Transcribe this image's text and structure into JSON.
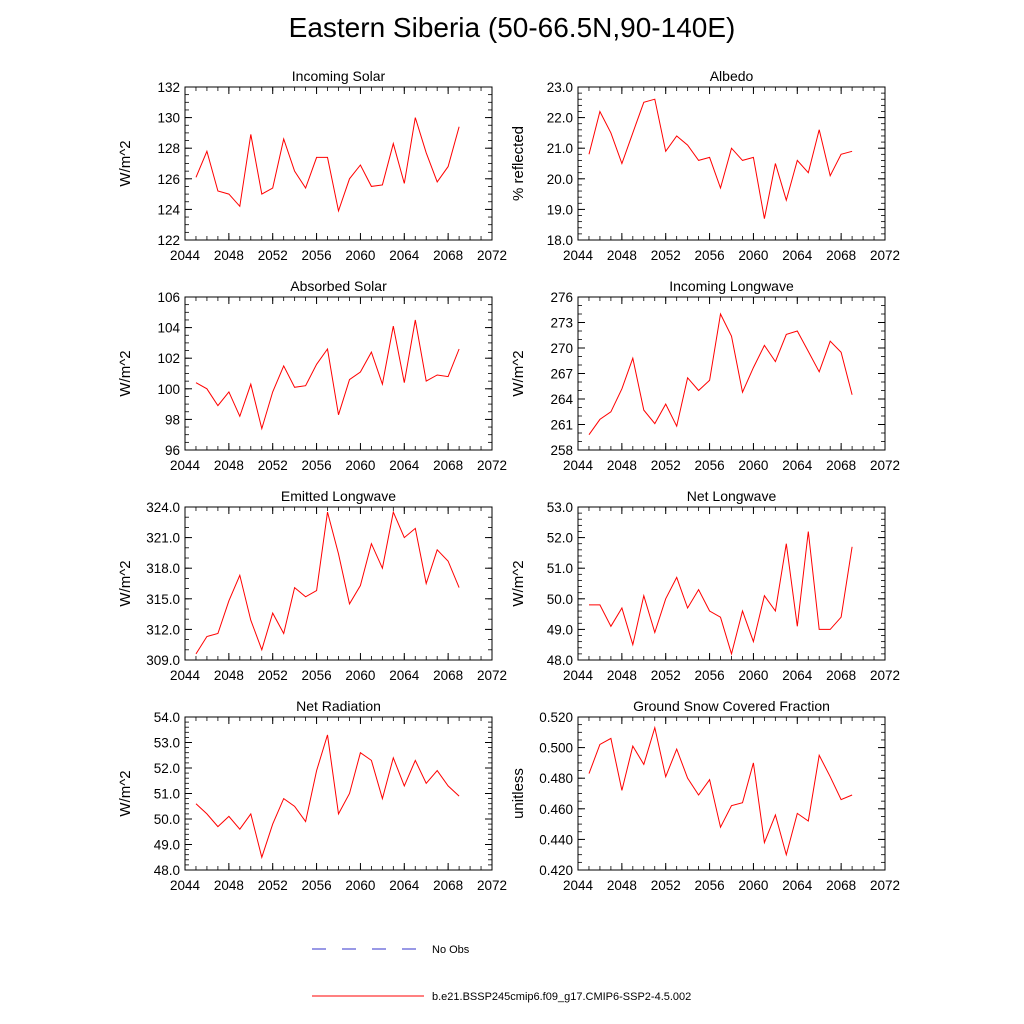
{
  "figure": {
    "title": "Eastern Siberia (50-66.5N,90-140E)",
    "legend": [
      {
        "label": "No Obs",
        "color": "#3333cc",
        "style": "dashed"
      },
      {
        "label": "b.e21.BSSP245cmip6.f09_g17.CMIP6-SSP2-4.5.002",
        "color": "#ff0000",
        "style": "solid"
      }
    ]
  },
  "chart_data": [
    {
      "type": "line",
      "title": "Incoming Solar",
      "xlabel": "",
      "ylabel": "W/m^2",
      "xlim": [
        2044,
        2072
      ],
      "xticks": [
        2044,
        2048,
        2052,
        2056,
        2060,
        2064,
        2068,
        2072
      ],
      "ylim": [
        122,
        132
      ],
      "yticks": [
        "122",
        "124",
        "126",
        "128",
        "130",
        "132"
      ],
      "ytick_values": [
        122,
        124,
        126,
        128,
        130,
        132
      ],
      "yminor": 0.5,
      "x": [
        2045,
        2046,
        2047,
        2048,
        2049,
        2050,
        2051,
        2052,
        2053,
        2054,
        2055,
        2056,
        2057,
        2058,
        2059,
        2060,
        2061,
        2062,
        2063,
        2064,
        2065,
        2066,
        2067,
        2068,
        2069
      ],
      "series": [
        {
          "name": "b.e21.BSSP245cmip6.f09_g17.CMIP6-SSP2-4.5.002",
          "color": "#ff0000",
          "values": [
            126.1,
            127.8,
            125.2,
            125.0,
            124.2,
            128.9,
            125.0,
            125.4,
            128.6,
            126.5,
            125.4,
            127.4,
            127.4,
            123.9,
            126.0,
            126.9,
            125.5,
            125.6,
            128.3,
            125.7,
            130.0,
            127.7,
            125.8,
            126.8,
            129.4
          ]
        }
      ]
    },
    {
      "type": "line",
      "title": "Albedo",
      "xlabel": "",
      "ylabel": "% reflected",
      "xlim": [
        2044,
        2072
      ],
      "xticks": [
        2044,
        2048,
        2052,
        2056,
        2060,
        2064,
        2068,
        2072
      ],
      "ylim": [
        18,
        23
      ],
      "yticks": [
        "18.0",
        "19.0",
        "20.0",
        "21.0",
        "22.0",
        "23.0"
      ],
      "ytick_values": [
        18,
        19,
        20,
        21,
        22,
        23
      ],
      "yminor": 0.2,
      "x": [
        2045,
        2046,
        2047,
        2048,
        2049,
        2050,
        2051,
        2052,
        2053,
        2054,
        2055,
        2056,
        2057,
        2058,
        2059,
        2060,
        2061,
        2062,
        2063,
        2064,
        2065,
        2066,
        2067,
        2068,
        2069
      ],
      "series": [
        {
          "name": "b.e21.BSSP245cmip6.f09_g17.CMIP6-SSP2-4.5.002",
          "color": "#ff0000",
          "values": [
            20.8,
            22.2,
            21.5,
            20.5,
            21.5,
            22.5,
            22.6,
            20.9,
            21.4,
            21.1,
            20.6,
            20.7,
            19.7,
            21.0,
            20.6,
            20.7,
            18.7,
            20.5,
            19.3,
            20.6,
            20.2,
            21.6,
            20.1,
            20.8,
            20.9
          ]
        }
      ]
    },
    {
      "type": "line",
      "title": "Absorbed Solar",
      "xlabel": "",
      "ylabel": "W/m^2",
      "xlim": [
        2044,
        2072
      ],
      "xticks": [
        2044,
        2048,
        2052,
        2056,
        2060,
        2064,
        2068,
        2072
      ],
      "ylim": [
        96,
        106
      ],
      "yticks": [
        "96",
        "98",
        "100",
        "102",
        "104",
        "106"
      ],
      "ytick_values": [
        96,
        98,
        100,
        102,
        104,
        106
      ],
      "yminor": 0.5,
      "x": [
        2045,
        2046,
        2047,
        2048,
        2049,
        2050,
        2051,
        2052,
        2053,
        2054,
        2055,
        2056,
        2057,
        2058,
        2059,
        2060,
        2061,
        2062,
        2063,
        2064,
        2065,
        2066,
        2067,
        2068,
        2069
      ],
      "series": [
        {
          "name": "b.e21.BSSP245cmip6.f09_g17.CMIP6-SSP2-4.5.002",
          "color": "#ff0000",
          "values": [
            100.4,
            100.0,
            98.9,
            99.8,
            98.2,
            100.3,
            97.4,
            99.8,
            101.5,
            100.1,
            100.2,
            101.6,
            102.6,
            98.3,
            100.6,
            101.1,
            102.4,
            100.3,
            104.1,
            100.4,
            104.5,
            100.5,
            100.9,
            100.8,
            102.6
          ]
        }
      ]
    },
    {
      "type": "line",
      "title": "Incoming Longwave",
      "xlabel": "",
      "ylabel": "W/m^2",
      "xlim": [
        2044,
        2072
      ],
      "xticks": [
        2044,
        2048,
        2052,
        2056,
        2060,
        2064,
        2068,
        2072
      ],
      "ylim": [
        258,
        276
      ],
      "yticks": [
        "258",
        "261",
        "264",
        "267",
        "270",
        "273",
        "276"
      ],
      "ytick_values": [
        258,
        261,
        264,
        267,
        270,
        273,
        276
      ],
      "yminor": 1,
      "x": [
        2045,
        2046,
        2047,
        2048,
        2049,
        2050,
        2051,
        2052,
        2053,
        2054,
        2055,
        2056,
        2057,
        2058,
        2059,
        2060,
        2061,
        2062,
        2063,
        2064,
        2065,
        2066,
        2067,
        2068,
        2069
      ],
      "series": [
        {
          "name": "b.e21.BSSP245cmip6.f09_g17.CMIP6-SSP2-4.5.002",
          "color": "#ff0000",
          "values": [
            259.8,
            261.6,
            262.5,
            265.2,
            268.8,
            262.7,
            261.1,
            263.4,
            260.8,
            266.5,
            265.0,
            266.2,
            274.0,
            271.4,
            264.8,
            267.7,
            270.3,
            268.4,
            271.6,
            272.0,
            269.6,
            267.2,
            270.8,
            269.5,
            264.5
          ]
        }
      ]
    },
    {
      "type": "line",
      "title": "Emitted Longwave",
      "xlabel": "",
      "ylabel": "W/m^2",
      "xlim": [
        2044,
        2072
      ],
      "xticks": [
        2044,
        2048,
        2052,
        2056,
        2060,
        2064,
        2068,
        2072
      ],
      "ylim": [
        309,
        324
      ],
      "yticks": [
        "309.0",
        "312.0",
        "315.0",
        "318.0",
        "321.0",
        "324.0"
      ],
      "ytick_values": [
        309,
        312,
        315,
        318,
        321,
        324
      ],
      "yminor": 1,
      "x": [
        2045,
        2046,
        2047,
        2048,
        2049,
        2050,
        2051,
        2052,
        2053,
        2054,
        2055,
        2056,
        2057,
        2058,
        2059,
        2060,
        2061,
        2062,
        2063,
        2064,
        2065,
        2066,
        2067,
        2068,
        2069
      ],
      "series": [
        {
          "name": "b.e21.BSSP245cmip6.f09_g17.CMIP6-SSP2-4.5.002",
          "color": "#ff0000",
          "values": [
            309.6,
            311.3,
            311.6,
            314.8,
            317.3,
            312.9,
            310.0,
            313.6,
            311.6,
            316.1,
            315.2,
            315.8,
            323.5,
            319.4,
            314.5,
            316.3,
            320.4,
            318.0,
            323.5,
            321.0,
            321.9,
            316.5,
            319.8,
            318.7,
            316.1
          ]
        }
      ]
    },
    {
      "type": "line",
      "title": "Net Longwave",
      "xlabel": "",
      "ylabel": "W/m^2",
      "xlim": [
        2044,
        2072
      ],
      "xticks": [
        2044,
        2048,
        2052,
        2056,
        2060,
        2064,
        2068,
        2072
      ],
      "ylim": [
        48,
        53
      ],
      "yticks": [
        "48.0",
        "49.0",
        "50.0",
        "51.0",
        "52.0",
        "53.0"
      ],
      "ytick_values": [
        48,
        49,
        50,
        51,
        52,
        53
      ],
      "yminor": 0.2,
      "x": [
        2045,
        2046,
        2047,
        2048,
        2049,
        2050,
        2051,
        2052,
        2053,
        2054,
        2055,
        2056,
        2057,
        2058,
        2059,
        2060,
        2061,
        2062,
        2063,
        2064,
        2065,
        2066,
        2067,
        2068,
        2069
      ],
      "series": [
        {
          "name": "b.e21.BSSP245cmip6.f09_g17.CMIP6-SSP2-4.5.002",
          "color": "#ff0000",
          "values": [
            49.8,
            49.8,
            49.1,
            49.7,
            48.5,
            50.1,
            48.9,
            50.0,
            50.7,
            49.7,
            50.3,
            49.6,
            49.4,
            48.2,
            49.6,
            48.6,
            50.1,
            49.6,
            51.8,
            49.1,
            52.2,
            49.0,
            49.0,
            49.4,
            51.7
          ]
        }
      ]
    },
    {
      "type": "line",
      "title": "Net Radiation",
      "xlabel": "",
      "ylabel": "W/m^2",
      "xlim": [
        2044,
        2072
      ],
      "xticks": [
        2044,
        2048,
        2052,
        2056,
        2060,
        2064,
        2068,
        2072
      ],
      "ylim": [
        48,
        54
      ],
      "yticks": [
        "48.0",
        "49.0",
        "50.0",
        "51.0",
        "52.0",
        "53.0",
        "54.0"
      ],
      "ytick_values": [
        48,
        49,
        50,
        51,
        52,
        53,
        54
      ],
      "yminor": 0.2,
      "x": [
        2045,
        2046,
        2047,
        2048,
        2049,
        2050,
        2051,
        2052,
        2053,
        2054,
        2055,
        2056,
        2057,
        2058,
        2059,
        2060,
        2061,
        2062,
        2063,
        2064,
        2065,
        2066,
        2067,
        2068,
        2069
      ],
      "series": [
        {
          "name": "b.e21.BSSP245cmip6.f09_g17.CMIP6-SSP2-4.5.002",
          "color": "#ff0000",
          "values": [
            50.6,
            50.2,
            49.7,
            50.1,
            49.6,
            50.2,
            48.5,
            49.8,
            50.8,
            50.5,
            49.9,
            51.9,
            53.3,
            50.2,
            51.0,
            52.6,
            52.3,
            50.8,
            52.4,
            51.3,
            52.3,
            51.4,
            51.9,
            51.3,
            50.9
          ]
        }
      ]
    },
    {
      "type": "line",
      "title": "Ground Snow Covered Fraction",
      "xlabel": "",
      "ylabel": "unitless",
      "xlim": [
        2044,
        2072
      ],
      "xticks": [
        2044,
        2048,
        2052,
        2056,
        2060,
        2064,
        2068,
        2072
      ],
      "ylim": [
        0.42,
        0.52
      ],
      "yticks": [
        "0.420",
        "0.440",
        "0.460",
        "0.480",
        "0.500",
        "0.520"
      ],
      "ytick_values": [
        0.42,
        0.44,
        0.46,
        0.48,
        0.5,
        0.52
      ],
      "yminor": 0.005,
      "x": [
        2045,
        2046,
        2047,
        2048,
        2049,
        2050,
        2051,
        2052,
        2053,
        2054,
        2055,
        2056,
        2057,
        2058,
        2059,
        2060,
        2061,
        2062,
        2063,
        2064,
        2065,
        2066,
        2067,
        2068,
        2069
      ],
      "series": [
        {
          "name": "b.e21.BSSP245cmip6.f09_g17.CMIP6-SSP2-4.5.002",
          "color": "#ff0000",
          "values": [
            0.483,
            0.502,
            0.506,
            0.472,
            0.501,
            0.489,
            0.513,
            0.481,
            0.499,
            0.48,
            0.469,
            0.479,
            0.448,
            0.462,
            0.464,
            0.49,
            0.438,
            0.456,
            0.43,
            0.457,
            0.452,
            0.495,
            0.481,
            0.466,
            0.469
          ]
        }
      ]
    }
  ]
}
